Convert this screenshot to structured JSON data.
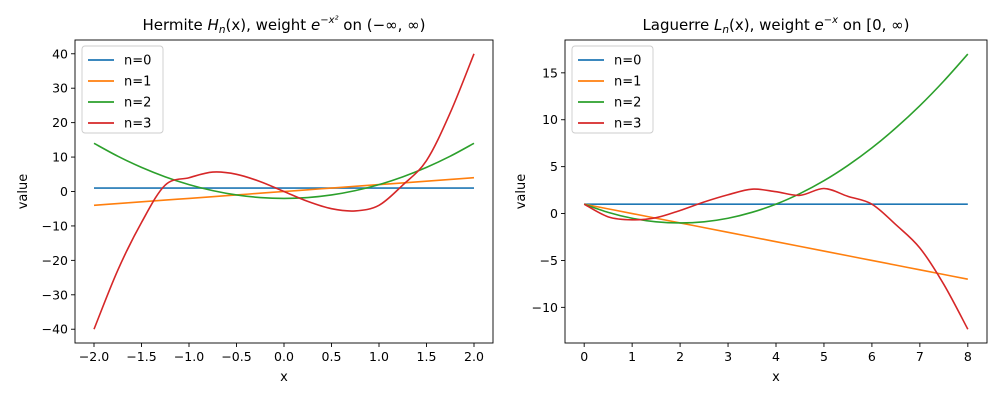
{
  "chart_data": [
    {
      "type": "line",
      "title": {
        "prefix": "Hermite ",
        "func": "H",
        "sub": "n",
        "arg": "(x)",
        "mid": ", weight ",
        "base": "e",
        "exp": "−x²",
        "suffix": " on (−∞, ∞)"
      },
      "xlabel": "x",
      "ylabel": "value",
      "xlim": [
        -2.2,
        2.2
      ],
      "ylim": [
        -44,
        44
      ],
      "xticks": [
        -2.0,
        -1.5,
        -1.0,
        -0.5,
        0.0,
        0.5,
        1.0,
        1.5,
        2.0
      ],
      "xtick_labels": [
        "−2.0",
        "−1.5",
        "−1.0",
        "−0.5",
        "0.0",
        "0.5",
        "1.0",
        "1.5",
        "2.0"
      ],
      "yticks": [
        -40,
        -30,
        -20,
        -10,
        0,
        10,
        20,
        30,
        40
      ],
      "ytick_labels": [
        "−40",
        "−30",
        "−20",
        "−10",
        "0",
        "10",
        "20",
        "30",
        "40"
      ],
      "grid": false,
      "legend": "upper-left",
      "x": [
        -2.0,
        -1.75,
        -1.5,
        -1.25,
        -1.0,
        -0.75,
        -0.5,
        -0.25,
        0.0,
        0.25,
        0.5,
        0.75,
        1.0,
        1.25,
        1.5,
        1.75,
        2.0
      ],
      "series": [
        {
          "name": "n=0",
          "color": "#1f77b4",
          "values": [
            1,
            1,
            1,
            1,
            1,
            1,
            1,
            1,
            1,
            1,
            1,
            1,
            1,
            1,
            1,
            1,
            1
          ]
        },
        {
          "name": "n=1",
          "color": "#ff7f0e",
          "values": [
            -4.0,
            -3.5,
            -3.0,
            -2.5,
            -2.0,
            -1.5,
            -1.0,
            -0.5,
            0.0,
            0.5,
            1.0,
            1.5,
            2.0,
            2.5,
            3.0,
            3.5,
            4.0
          ]
        },
        {
          "name": "n=2",
          "color": "#2ca02c",
          "values": [
            14.0,
            10.25,
            7.0,
            4.25,
            2.0,
            0.25,
            -1.0,
            -1.75,
            -2.0,
            -1.75,
            -1.0,
            0.25,
            2.0,
            4.25,
            7.0,
            10.25,
            14.0
          ]
        },
        {
          "name": "n=3",
          "color": "#d62728",
          "values": [
            -40.0,
            -22.88,
            -9.0,
            1.88,
            4.0,
            5.63,
            5.0,
            2.88,
            0.0,
            -2.88,
            -5.0,
            -5.63,
            -4.0,
            1.88,
            9.0,
            22.88,
            40.0
          ]
        }
      ]
    },
    {
      "type": "line",
      "title": {
        "prefix": "Laguerre ",
        "func": "L",
        "sub": "n",
        "arg": "(x)",
        "mid": ", weight ",
        "base": "e",
        "exp": "−x",
        "suffix": " on [0, ∞)"
      },
      "xlabel": "x",
      "ylabel": "value",
      "xlim": [
        -0.4,
        8.4
      ],
      "ylim": [
        -13.8,
        18.5
      ],
      "xticks": [
        0,
        1,
        2,
        3,
        4,
        5,
        6,
        7,
        8
      ],
      "xtick_labels": [
        "0",
        "1",
        "2",
        "3",
        "4",
        "5",
        "6",
        "7",
        "8"
      ],
      "yticks": [
        -10,
        -5,
        0,
        5,
        10,
        15
      ],
      "ytick_labels": [
        "−10",
        "−5",
        "0",
        "5",
        "10",
        "15"
      ],
      "grid": false,
      "legend": "upper-left",
      "x": [
        0,
        0.5,
        1,
        1.5,
        2,
        2.5,
        3,
        3.5,
        4,
        4.5,
        5,
        5.5,
        6,
        6.5,
        7,
        7.5,
        8
      ],
      "series": [
        {
          "name": "n=0",
          "color": "#1f77b4",
          "values": [
            1,
            1,
            1,
            1,
            1,
            1,
            1,
            1,
            1,
            1,
            1,
            1,
            1,
            1,
            1,
            1,
            1
          ]
        },
        {
          "name": "n=1",
          "color": "#ff7f0e",
          "values": [
            1.0,
            0.5,
            0.0,
            -0.5,
            -1.0,
            -1.5,
            -2.0,
            -2.5,
            -3.0,
            -3.5,
            -4.0,
            -4.5,
            -5.0,
            -5.5,
            -6.0,
            -6.5,
            -7.0
          ]
        },
        {
          "name": "n=2",
          "color": "#2ca02c",
          "values": [
            1.0,
            0.13,
            -0.5,
            -0.88,
            -1.0,
            -0.88,
            -0.5,
            0.13,
            1.0,
            2.13,
            3.5,
            5.13,
            7.0,
            9.13,
            11.5,
            14.13,
            17.0
          ]
        },
        {
          "name": "n=3",
          "color": "#d62728",
          "values": [
            1.0,
            -0.35,
            -0.67,
            -0.44,
            0.33,
            1.23,
            2.0,
            2.6,
            2.33,
            1.94,
            2.67,
            1.83,
            1.0,
            -1.19,
            -3.67,
            -7.56,
            -12.33
          ]
        }
      ]
    }
  ]
}
